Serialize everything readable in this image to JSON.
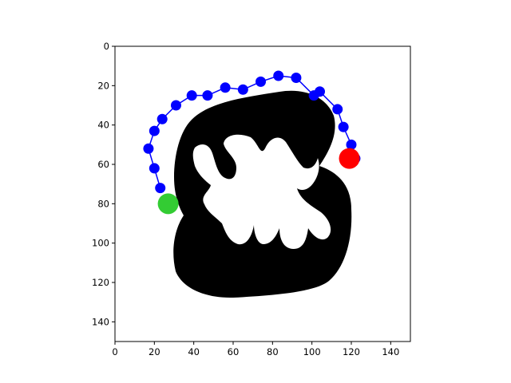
{
  "chart_data": {
    "type": "scatter",
    "title": "",
    "xlabel": "",
    "ylabel": "",
    "xlim": [
      0,
      150
    ],
    "ylim": [
      150,
      0
    ],
    "y_inverted": true,
    "grid": false,
    "legend": "none",
    "xticks": [
      "0",
      "20",
      "40",
      "60",
      "80",
      "100",
      "120",
      "140"
    ],
    "yticks": [
      "0",
      "20",
      "40",
      "60",
      "80",
      "100",
      "120",
      "140"
    ],
    "background_image": "binary black shape on white (mask image)",
    "series": [
      {
        "role": "path",
        "color": "#0000ff",
        "x": [
          23,
          20,
          17,
          20,
          24,
          31,
          39,
          47,
          56,
          65,
          74,
          83,
          92,
          101,
          104,
          113,
          116,
          120,
          122
        ],
        "y": [
          72,
          62,
          52,
          43,
          37,
          30,
          25,
          25,
          21,
          22,
          18,
          15,
          16,
          25,
          23,
          32,
          41,
          50,
          57
        ],
        "marker": "circle",
        "connected": true
      },
      {
        "role": "start",
        "color": "#33cc33",
        "x": [
          27
        ],
        "y": [
          80
        ],
        "marker": "large-circle"
      },
      {
        "role": "goal",
        "color": "#ff0000",
        "x": [
          119
        ],
        "y": [
          57
        ],
        "marker": "large-circle"
      }
    ]
  }
}
